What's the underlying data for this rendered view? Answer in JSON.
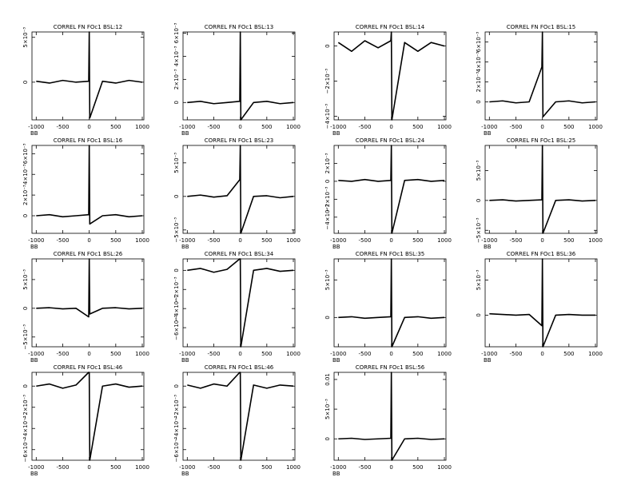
{
  "chart_data": [
    {
      "type": "line",
      "title": "CORREL FN FOc1 BSL:12",
      "x_label": "BB",
      "x": [
        -1000,
        -750,
        -500,
        -250,
        -10,
        0,
        10,
        250,
        500,
        750,
        1000
      ],
      "values": [
        0.0001,
        -0.0001,
        0.0002,
        0,
        0.0001,
        0.0056,
        -0.004,
        0.0001,
        -0.0001,
        0.0002,
        0
      ],
      "color": "#000000",
      "xlim": [
        -1080,
        1030
      ],
      "ylim": [
        -0.0042,
        0.0056
      ],
      "xticks": [
        -1000,
        -500,
        0,
        500,
        1000
      ],
      "yticks": [
        0,
        {
          "value": 0.005,
          "label": "5×10⁻³"
        }
      ]
    },
    {
      "type": "line",
      "title": "CORREL FN FOc1 BSL:13",
      "x_label": "BB",
      "x": [
        -1000,
        -750,
        -500,
        -250,
        -10,
        0,
        10,
        250,
        500,
        750,
        1000
      ],
      "values": [
        0,
        0.0001,
        -0.0001,
        0,
        0.0001,
        0.0061,
        -0.0015,
        0,
        0.0001,
        -0.0001,
        0
      ],
      "color": "#000000",
      "xlim": [
        -1080,
        1030
      ],
      "ylim": [
        -0.0015,
        0.0061
      ],
      "xticks": [
        -1000,
        -500,
        0,
        500,
        1000
      ],
      "yticks": [
        0,
        {
          "value": 0.002,
          "label": "2×10⁻³"
        },
        {
          "value": 0.004,
          "label": "4×10⁻³"
        },
        {
          "value": 0.006,
          "label": "6×10⁻³"
        }
      ]
    },
    {
      "type": "line",
      "title": "CORREL FN FOc1 BSL:14",
      "x_label": "BB",
      "x": [
        -1000,
        -750,
        -500,
        -250,
        -10,
        0,
        10,
        250,
        500,
        750,
        1000
      ],
      "values": [
        0.0002,
        -0.0003,
        0.0003,
        -0.0001,
        0.0003,
        0.0008,
        -0.0042,
        0.0002,
        -0.0003,
        0.0002,
        0
      ],
      "color": "#000000",
      "xlim": [
        -1080,
        1030
      ],
      "ylim": [
        -0.0042,
        0.0008
      ],
      "xticks": [
        -1000,
        -500,
        0,
        500,
        1000
      ],
      "yticks": [
        {
          "value": -0.004,
          "label": "−4×10⁻³"
        },
        {
          "value": -0.002,
          "label": "−2×10⁻³"
        },
        0
      ]
    },
    {
      "type": "line",
      "title": "CORREL FN FOc1 BSL:15",
      "x_label": "BB",
      "x": [
        -1000,
        -750,
        -500,
        -250,
        -10,
        0,
        10,
        250,
        500,
        750,
        1000
      ],
      "values": [
        0,
        0.0001,
        -0.0001,
        0,
        0.0035,
        0.007,
        -0.0015,
        0,
        0.0001,
        -0.0001,
        0
      ],
      "color": "#000000",
      "xlim": [
        -1080,
        1030
      ],
      "ylim": [
        -0.0018,
        0.007
      ],
      "xticks": [
        -1000,
        -500,
        0,
        500,
        1000
      ],
      "yticks": [
        0,
        {
          "value": 0.002,
          "label": "2×10⁻³"
        },
        {
          "value": 0.004,
          "label": "4×10⁻³"
        },
        {
          "value": 0.006,
          "label": "6×10⁻³"
        }
      ]
    },
    {
      "type": "line",
      "title": "CORREL FN FOc1 BSL:16",
      "x_label": "BB",
      "x": [
        -1000,
        -750,
        -500,
        -250,
        -10,
        0,
        10,
        250,
        500,
        750,
        1000
      ],
      "values": [
        0,
        0.0001,
        -0.0001,
        0,
        0.0001,
        0.0068,
        -0.0008,
        0,
        0.0001,
        -0.0001,
        0
      ],
      "color": "#000000",
      "xlim": [
        -1080,
        1030
      ],
      "ylim": [
        -0.0017,
        0.0068
      ],
      "xticks": [
        -1000,
        -500,
        0,
        500,
        1000
      ],
      "yticks": [
        0,
        {
          "value": 0.002,
          "label": "2×10⁻³"
        },
        {
          "value": 0.004,
          "label": "4×10⁻³"
        },
        {
          "value": 0.006,
          "label": "6×10⁻³"
        }
      ]
    },
    {
      "type": "line",
      "title": "CORREL FN FOc1 BSL:23",
      "x_label": "BB",
      "x": [
        -1000,
        -750,
        -500,
        -250,
        -10,
        0,
        10,
        250,
        500,
        750,
        1000
      ],
      "values": [
        0,
        0.0002,
        -0.0001,
        0.0001,
        0.0025,
        0.0076,
        -0.0055,
        0,
        0.0001,
        -0.0002,
        0
      ],
      "color": "#000000",
      "xlim": [
        -1080,
        1030
      ],
      "ylim": [
        -0.0055,
        0.0076
      ],
      "xticks": [
        -1000,
        -500,
        0,
        500,
        1000
      ],
      "yticks": [
        {
          "value": -0.005,
          "label": "−5×10⁻³"
        },
        0,
        {
          "value": 0.005,
          "label": "5×10⁻³"
        }
      ]
    },
    {
      "type": "line",
      "title": "CORREL FN FOc1 BSL:24",
      "x_label": "BB",
      "x": [
        -1000,
        -750,
        -500,
        -250,
        -10,
        0,
        10,
        250,
        500,
        750,
        1000
      ],
      "values": [
        0.0001,
        0,
        0.0002,
        0,
        0.0001,
        0.004,
        -0.0058,
        0.0001,
        0.0002,
        0,
        0.0001
      ],
      "color": "#000000",
      "xlim": [
        -1080,
        1030
      ],
      "ylim": [
        -0.0058,
        0.004
      ],
      "xticks": [
        -1000,
        -500,
        0,
        500,
        1000
      ],
      "yticks": [
        {
          "value": -0.004,
          "label": "−4×10⁻³"
        },
        {
          "value": -0.002,
          "label": "−2×10⁻³"
        },
        0,
        {
          "value": 0.002,
          "label": "2×10⁻³"
        }
      ]
    },
    {
      "type": "line",
      "title": "CORREL FN FOc1 BSL:25",
      "x_label": "BB",
      "x": [
        -1000,
        -750,
        -500,
        -250,
        -10,
        0,
        10,
        250,
        500,
        750,
        1000
      ],
      "values": [
        0,
        0.0001,
        -0.0001,
        0,
        0.0001,
        0.0092,
        -0.0055,
        0,
        0.0001,
        -0.0001,
        0
      ],
      "color": "#000000",
      "xlim": [
        -1080,
        1030
      ],
      "ylim": [
        -0.0055,
        0.0092
      ],
      "xticks": [
        -1000,
        -500,
        0,
        500,
        1000
      ],
      "yticks": [
        {
          "value": -0.005,
          "label": "−5×10⁻³"
        },
        0,
        {
          "value": 0.005,
          "label": "5×10⁻³"
        }
      ]
    },
    {
      "type": "line",
      "title": "CORREL FN FOc1 BSL:26",
      "x_label": "BB",
      "x": [
        -1000,
        -750,
        -500,
        -250,
        -10,
        0,
        10,
        250,
        500,
        750,
        1000
      ],
      "values": [
        0,
        0.0001,
        -0.0001,
        0,
        -0.0015,
        0.0086,
        -0.001,
        0,
        0.0001,
        -0.0001,
        0
      ],
      "color": "#000000",
      "xlim": [
        -1080,
        1030
      ],
      "ylim": [
        -0.0067,
        0.0086
      ],
      "xticks": [
        -1000,
        -500,
        0,
        500,
        1000
      ],
      "yticks": [
        {
          "value": -0.005,
          "label": "−5×10⁻³"
        },
        0,
        {
          "value": 0.005,
          "label": "5×10⁻³"
        }
      ]
    },
    {
      "type": "line",
      "title": "CORREL FN FOc1 BSL:34",
      "x_label": "BB",
      "x": [
        -1000,
        -750,
        -500,
        -250,
        -10,
        0,
        10,
        250,
        500,
        750,
        1000
      ],
      "values": [
        0,
        0.0002,
        -0.0002,
        0.0001,
        0.0012,
        0.0012,
        -0.008,
        0,
        0.0002,
        -0.0001,
        0
      ],
      "color": "#000000",
      "xlim": [
        -1080,
        1030
      ],
      "ylim": [
        -0.008,
        0.0012
      ],
      "xticks": [
        -1000,
        -500,
        0,
        500,
        1000
      ],
      "yticks": [
        {
          "value": -0.006,
          "label": "−6×10⁻³"
        },
        {
          "value": -0.004,
          "label": "−4×10⁻³"
        },
        {
          "value": -0.002,
          "label": "−2×10⁻³"
        },
        0
      ]
    },
    {
      "type": "line",
      "title": "CORREL FN FOc1 BSL:35",
      "x_label": "BB",
      "x": [
        -1000,
        -750,
        -500,
        -250,
        -10,
        0,
        10,
        250,
        500,
        750,
        1000
      ],
      "values": [
        0,
        0.0001,
        -0.0001,
        0,
        0.0001,
        0.0078,
        -0.0039,
        0,
        0.0001,
        -0.0001,
        0
      ],
      "color": "#000000",
      "xlim": [
        -1080,
        1030
      ],
      "ylim": [
        -0.0039,
        0.0078
      ],
      "xticks": [
        -1000,
        -500,
        0,
        500,
        1000
      ],
      "yticks": [
        0,
        {
          "value": 0.005,
          "label": "5×10⁻³"
        }
      ]
    },
    {
      "type": "line",
      "title": "CORREL FN FOc1 BSL:36",
      "x_label": "BB",
      "x": [
        -1000,
        -750,
        -500,
        -250,
        -10,
        0,
        10,
        250,
        500,
        750,
        1000
      ],
      "values": [
        0.0002,
        0.0001,
        0,
        0.0001,
        -0.0015,
        0.008,
        -0.0045,
        0,
        0.0001,
        0,
        0
      ],
      "color": "#000000",
      "xlim": [
        -1080,
        1030
      ],
      "ylim": [
        -0.0045,
        0.008
      ],
      "xticks": [
        -1000,
        -500,
        0,
        500,
        1000
      ],
      "yticks": [
        0,
        {
          "value": 0.005,
          "label": "5×10⁻³"
        }
      ]
    },
    {
      "type": "line",
      "title": "CORREL FN FOc1 BSL:46",
      "x_label": "BB",
      "x": [
        -1000,
        -750,
        -500,
        -250,
        -10,
        0,
        10,
        250,
        500,
        750,
        1000
      ],
      "values": [
        0,
        0.0002,
        -0.0002,
        0.0001,
        0.0013,
        0.0013,
        -0.007,
        0,
        0.0002,
        -0.0001,
        0
      ],
      "color": "#000000",
      "xlim": [
        -1080,
        1030
      ],
      "ylim": [
        -0.007,
        0.0013
      ],
      "xticks": [
        -1000,
        -500,
        0,
        500,
        1000
      ],
      "yticks": [
        {
          "value": -0.006,
          "label": "−6×10⁻³"
        },
        {
          "value": -0.004,
          "label": "−4×10⁻³"
        },
        {
          "value": -0.002,
          "label": "−2×10⁻³"
        },
        0
      ]
    },
    {
      "type": "line",
      "title": "CORREL FN FOc1 BSL:46",
      "x_label": "BB",
      "x": [
        -1000,
        -750,
        -500,
        -250,
        -10,
        0,
        10,
        250,
        500,
        750,
        1000
      ],
      "values": [
        0.0001,
        -0.0002,
        0.0002,
        0,
        0.0013,
        0.0013,
        -0.007,
        0.0001,
        -0.0002,
        0.0001,
        0
      ],
      "color": "#000000",
      "xlim": [
        -1080,
        1030
      ],
      "ylim": [
        -0.007,
        0.0013
      ],
      "xticks": [
        -1000,
        -500,
        0,
        500,
        1000
      ],
      "yticks": [
        {
          "value": -0.006,
          "label": "−6×10⁻³"
        },
        {
          "value": -0.004,
          "label": "−4×10⁻³"
        },
        {
          "value": -0.002,
          "label": "−2×10⁻³"
        },
        0
      ]
    },
    {
      "type": "line",
      "title": "CORREL FN FOc1 BSL:56",
      "x_label": "BB",
      "x": [
        -1000,
        -750,
        -500,
        -250,
        -10,
        0,
        10,
        250,
        500,
        750,
        1000
      ],
      "values": [
        0,
        0.0001,
        -0.0001,
        0,
        0.0001,
        0.0112,
        -0.0036,
        0,
        0.0001,
        -0.0001,
        0
      ],
      "color": "#000000",
      "xlim": [
        -1080,
        1030
      ],
      "ylim": [
        -0.0036,
        0.0112
      ],
      "xticks": [
        -1000,
        -500,
        0,
        500,
        1000
      ],
      "yticks": [
        0,
        {
          "value": 0.005,
          "label": "5×10⁻³"
        },
        0.01
      ]
    }
  ]
}
